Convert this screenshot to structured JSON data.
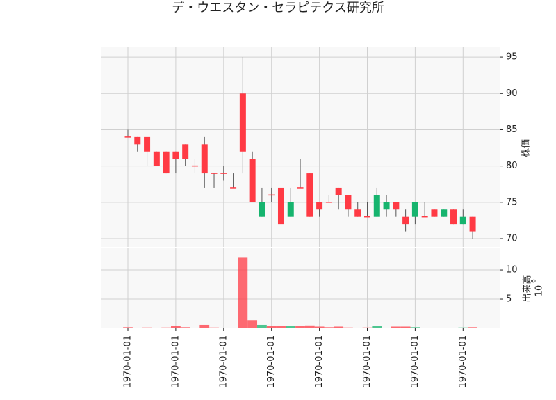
{
  "chart_data": {
    "type": "candlestick",
    "title": "デ・ウエスタン・セラピテクス研究所",
    "categories": [
      "1970-01-01",
      null,
      null,
      null,
      null,
      "1970-01-01",
      null,
      null,
      null,
      null,
      "1970-01-01",
      null,
      null,
      null,
      null,
      "1970-01-01",
      null,
      null,
      null,
      null,
      "1970-01-01",
      null,
      null,
      null,
      null,
      "1970-01-01",
      null,
      null,
      null,
      null,
      "1970-01-01",
      null,
      null,
      null,
      null,
      "1970-01-01",
      null
    ],
    "open": [
      84,
      84,
      84,
      82,
      82,
      82,
      83,
      80,
      83,
      79,
      79,
      77,
      90,
      81,
      73,
      76,
      77,
      73,
      77,
      79,
      75,
      75,
      77,
      76,
      74,
      73,
      73,
      74,
      75,
      73,
      73,
      73,
      74,
      73,
      74,
      72,
      73
    ],
    "high": [
      85,
      84,
      84,
      82,
      82,
      82,
      83,
      81,
      84,
      79,
      80,
      79,
      95,
      82,
      77,
      77,
      77,
      77,
      81,
      79,
      75,
      76,
      77,
      76,
      75,
      75,
      77,
      76,
      75,
      74,
      75,
      75,
      74,
      74,
      74,
      74,
      73
    ],
    "low": [
      84,
      82,
      80,
      80,
      79,
      79,
      80,
      79,
      77,
      77,
      78,
      77,
      79,
      75,
      73,
      75,
      72,
      73,
      77,
      73,
      73,
      75,
      74,
      73,
      73,
      73,
      73,
      73,
      73,
      71,
      72,
      73,
      73,
      73,
      72,
      72,
      70
    ],
    "close": [
      84,
      83,
      82,
      80,
      79,
      81,
      81,
      80,
      79,
      79,
      79,
      77,
      82,
      75,
      75,
      76,
      72,
      75,
      77,
      73,
      74,
      75,
      76,
      74,
      73,
      73,
      76,
      75,
      74,
      72,
      75,
      73,
      73,
      74,
      72,
      73,
      71
    ],
    "up_color": "#16b46e",
    "down_color": "#ff3a44",
    "ylim": [
      68.85,
      96.35
    ],
    "yticks": [
      70,
      75,
      80,
      85,
      90,
      95
    ],
    "ylabel": "株価",
    "volume": {
      "values": [
        0.2,
        0.1,
        0.15,
        0.1,
        0.15,
        0.4,
        0.2,
        0.1,
        0.6,
        0.15,
        0.05,
        0.05,
        12.1,
        1.4,
        0.6,
        0.4,
        0.4,
        0.4,
        0.4,
        0.5,
        0.3,
        0.2,
        0.3,
        0.15,
        0.1,
        0.15,
        0.4,
        0.1,
        0.3,
        0.3,
        0.2,
        0.1,
        0.1,
        0.1,
        0.1,
        0.15,
        0.2
      ],
      "ylim": [
        0,
        13.7
      ],
      "yticks": [
        5,
        10
      ],
      "ylabel": "出来高",
      "offset_base": "10",
      "offset_exponent": "6"
    },
    "grid": true
  }
}
